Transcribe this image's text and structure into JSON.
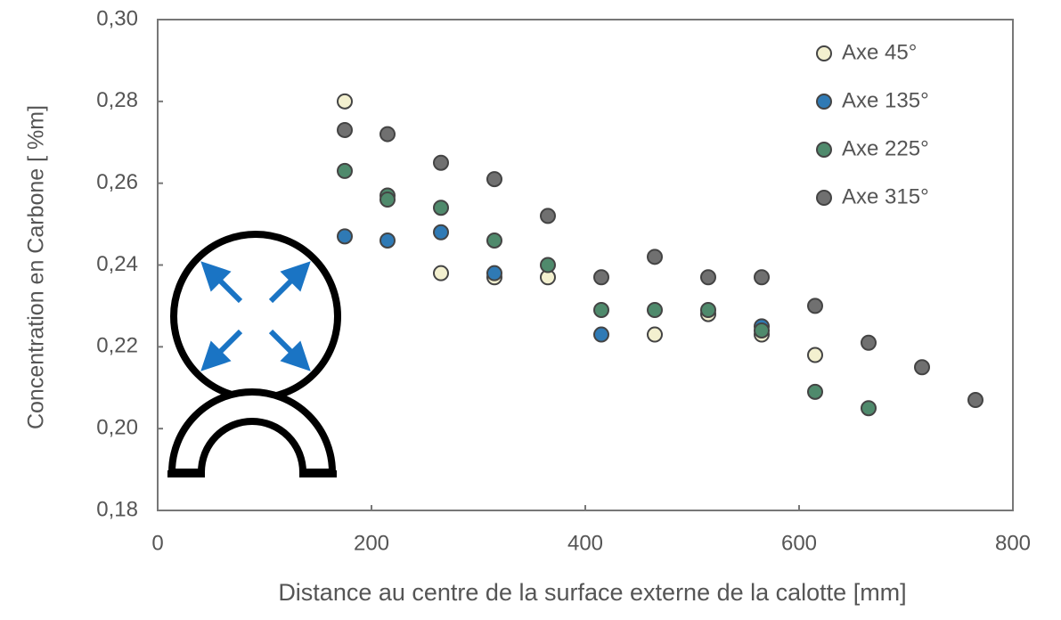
{
  "chart_data": {
    "type": "scatter",
    "xlabel": "Distance au centre de la surface externe de la calotte [mm]",
    "ylabel": "Concentration en Carbone [ %m]",
    "xlim": [
      0,
      800
    ],
    "xticks": [
      0,
      200,
      400,
      600,
      800
    ],
    "ylim": [
      0.18,
      0.3
    ],
    "yticks": [
      {
        "value": 0.18,
        "label": "0,18"
      },
      {
        "value": 0.2,
        "label": "0,20"
      },
      {
        "value": 0.22,
        "label": "0,22"
      },
      {
        "value": 0.24,
        "label": "0,24"
      },
      {
        "value": 0.26,
        "label": "0,26"
      },
      {
        "value": 0.28,
        "label": "0,28"
      },
      {
        "value": 0.3,
        "label": "0,30"
      }
    ],
    "legend": "upper right",
    "series": [
      {
        "name": "Axe 45°",
        "color": "#f3f0cf",
        "x": [
          175,
          265,
          315,
          365,
          465,
          515,
          565,
          615
        ],
        "values": [
          0.28,
          0.238,
          0.237,
          0.237,
          0.223,
          0.228,
          0.223,
          0.218
        ]
      },
      {
        "name": "Axe 135°",
        "color": "#2f7ab5",
        "x": [
          175,
          215,
          265,
          315,
          415,
          565
        ],
        "values": [
          0.247,
          0.246,
          0.248,
          0.238,
          0.223,
          0.225
        ]
      },
      {
        "name": "Axe 225°",
        "color": "#4f8a6c",
        "x": [
          175,
          215,
          215,
          265,
          315,
          365,
          415,
          465,
          515,
          565,
          615,
          665
        ],
        "values": [
          0.263,
          0.257,
          0.256,
          0.254,
          0.246,
          0.24,
          0.229,
          0.229,
          0.229,
          0.224,
          0.209,
          0.205
        ]
      },
      {
        "name": "Axe 315°",
        "color": "#707070",
        "x": [
          175,
          215,
          265,
          315,
          365,
          415,
          465,
          515,
          565,
          615,
          665,
          715,
          765
        ],
        "values": [
          0.273,
          0.272,
          0.265,
          0.261,
          0.252,
          0.237,
          0.242,
          0.237,
          0.237,
          0.23,
          0.221,
          0.215,
          0.207
        ]
      }
    ]
  }
}
